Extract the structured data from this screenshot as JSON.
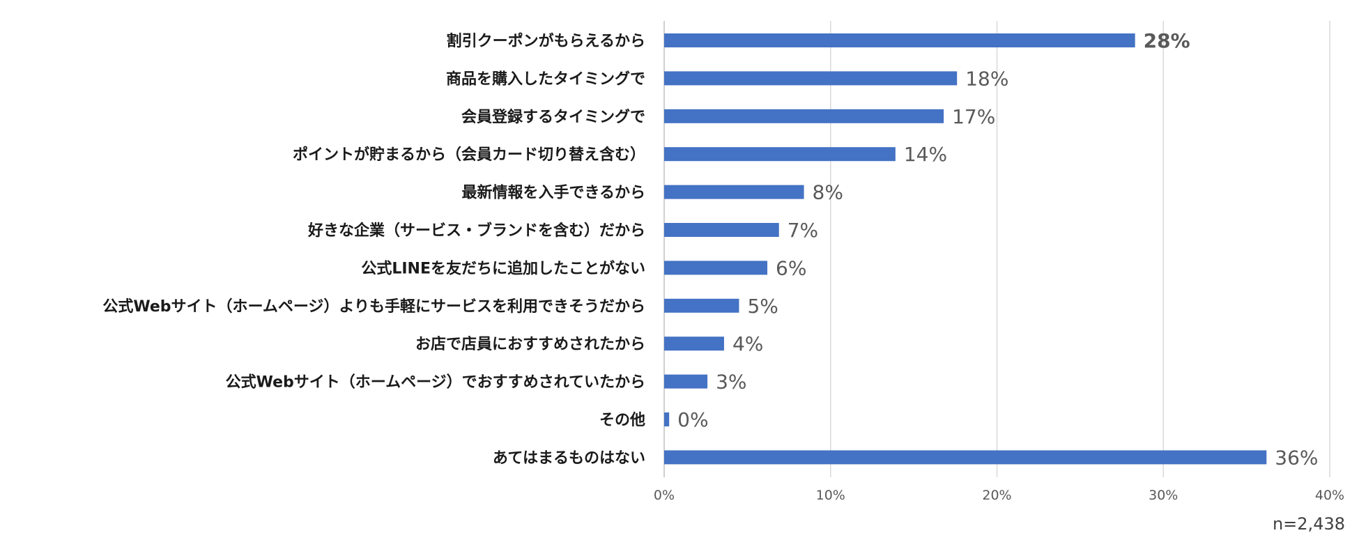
{
  "chart_data": {
    "type": "bar",
    "orientation": "horizontal",
    "categories": [
      "割引クーポンがもらえるから",
      "商品を購入したタイミングで",
      "会員登録するタイミングで",
      "ポイントが貯まるから（会員カード切り替え含む）",
      "最新情報を入手できるから",
      "好きな企業（サービス・ブランドを含む）だから",
      "公式LINEを友だちに追加したことがない",
      "公式Webサイト（ホームページ）よりも手軽にサービスを利用できそうだから",
      "お店で店員におすすめされたから",
      "公式Webサイト（ホームページ）でおすすめされていたから",
      "その他",
      "あてはまるものはない"
    ],
    "values": [
      28.3,
      17.6,
      16.8,
      13.9,
      8.4,
      6.9,
      6.2,
      4.5,
      3.6,
      2.6,
      0.3,
      36.2
    ],
    "value_labels": [
      "28%",
      "18%",
      "17%",
      "14%",
      "8%",
      "7%",
      "6%",
      "5%",
      "4%",
      "3%",
      "0%",
      "36%"
    ],
    "highlight_index": 0,
    "xlim": [
      0,
      40
    ],
    "ticks": [
      0,
      10,
      20,
      30,
      40
    ],
    "tick_labels": [
      "0%",
      "10%",
      "20%",
      "30%",
      "40%"
    ],
    "grid": true,
    "bar_color": "#4472C4",
    "title": "",
    "xlabel": "",
    "ylabel": ""
  },
  "footnote": "n=2,438"
}
